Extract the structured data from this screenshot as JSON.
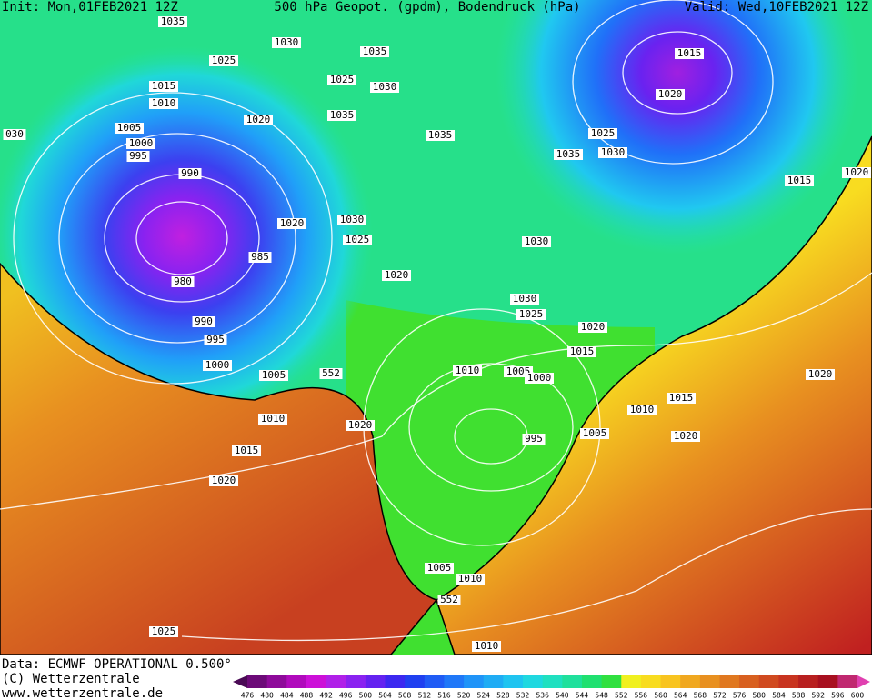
{
  "header": {
    "init": "Init: Mon,01FEB2021 12Z",
    "title": "500 hPa Geopot. (gpdm), Bodendruck (hPa)",
    "valid": "Valid: Wed,10FEB2021 12Z"
  },
  "labels": [
    "1035",
    "1030",
    "1035",
    "1025",
    "1025",
    "1030",
    "1015",
    "1010",
    "1035",
    "1020",
    "1005",
    "1000",
    "995",
    "990",
    "1035",
    "1035",
    "1030",
    "1025",
    "1015",
    "1020",
    "1015",
    "1020",
    "030",
    "1020",
    "1030",
    "1025",
    "985",
    "980",
    "1020",
    "1030",
    "1030",
    "1025",
    "1020",
    "1015",
    "990",
    "995",
    "1000",
    "1005",
    "552",
    "1010",
    "1005",
    "1000",
    "1020",
    "1015",
    "1010",
    "1010",
    "1020",
    "995",
    "1005",
    "1020",
    "1015",
    "1020",
    "1005",
    "1010",
    "552",
    "1025",
    "1010"
  ],
  "footer": {
    "data": "Data: ECMWF OPERATIONAL 0.500°",
    "copyright": "(C) Wetterzentrale",
    "url": "www.wetterzentrale.de"
  },
  "colorbar": {
    "ticks": [
      476,
      480,
      484,
      488,
      492,
      496,
      500,
      504,
      508,
      512,
      516,
      520,
      524,
      528,
      532,
      536,
      540,
      544,
      548,
      552,
      556,
      560,
      564,
      568,
      572,
      576,
      580,
      584,
      588,
      592,
      596,
      600
    ],
    "colors": [
      "#4a0a55",
      "#6c0a78",
      "#8e0a9a",
      "#b00abc",
      "#cc10d8",
      "#b020e8",
      "#8a22f0",
      "#6422f0",
      "#3c28f0",
      "#2040f0",
      "#205cf5",
      "#2078f8",
      "#2094f8",
      "#20acf4",
      "#20c4f0",
      "#20d8e0",
      "#20e0c0",
      "#20e09c",
      "#20e070",
      "#30e040",
      "#f0f020",
      "#f8dc20",
      "#f8c420",
      "#f0a820",
      "#e89020",
      "#e07820",
      "#d86020",
      "#d04a20",
      "#c83420",
      "#b82020",
      "#a81020",
      "#c02870",
      "#e040b0"
    ]
  }
}
